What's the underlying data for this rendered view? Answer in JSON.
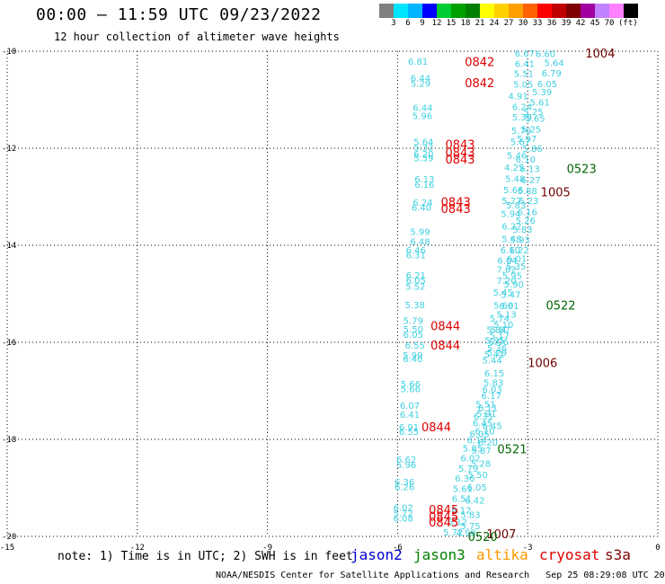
{
  "header": {
    "title": "00:00 — 11:59 UTC 09/23/2022",
    "subtitle": "12 hour collection of altimeter wave heights"
  },
  "legend": {
    "swatches": [
      "#808080",
      "#00e5ff",
      "#00b4ff",
      "#0000ff",
      "#00cc33",
      "#00a000",
      "#008000",
      "#ffff00",
      "#ffd000",
      "#ffa000",
      "#ff6000",
      "#ff0000",
      "#c00000",
      "#800000",
      "#a000a0",
      "#c080ff",
      "#ff80ff",
      "#000000"
    ],
    "labels": [
      "3",
      "6",
      "9",
      "12",
      "15",
      "18",
      "21",
      "24",
      "27",
      "30",
      "33",
      "36",
      "39",
      "42",
      "45",
      "70",
      "(ft)"
    ]
  },
  "chart_data": {
    "type": "scatter",
    "xlim": [
      -15,
      0
    ],
    "ylim": [
      -20,
      -10
    ],
    "x_ticks": [
      -15,
      -12,
      -9,
      -6,
      -3,
      0
    ],
    "y_ticks": [
      -10,
      -12,
      -14,
      -16,
      -18,
      -20
    ],
    "grid": true,
    "swh_color": "#40d0e0",
    "points": [
      {
        "x": -3.3,
        "y": -10.04,
        "v": "6.67"
      },
      {
        "x": -2.82,
        "y": -10.05,
        "v": "6.60"
      },
      {
        "x": -3.3,
        "y": -10.25,
        "v": "6.41"
      },
      {
        "x": -2.62,
        "y": -10.23,
        "v": "5.64"
      },
      {
        "x": -3.32,
        "y": -10.45,
        "v": "5.51"
      },
      {
        "x": -2.68,
        "y": -10.44,
        "v": "6.79"
      },
      {
        "x": -3.33,
        "y": -10.68,
        "v": "5.05"
      },
      {
        "x": -2.78,
        "y": -10.67,
        "v": "6.05"
      },
      {
        "x": -3.45,
        "y": -10.92,
        "v": "4.91"
      },
      {
        "x": -2.9,
        "y": -10.83,
        "v": "5.39"
      },
      {
        "x": -3.36,
        "y": -11.14,
        "v": "6.24"
      },
      {
        "x": -2.95,
        "y": -11.05,
        "v": "5.61"
      },
      {
        "x": -3.1,
        "y": -11.24,
        "v": "5.25"
      },
      {
        "x": -3.36,
        "y": -11.35,
        "v": "5.39"
      },
      {
        "x": -3.06,
        "y": -11.38,
        "v": "5.65"
      },
      {
        "x": -3.38,
        "y": -11.63,
        "v": "5.70"
      },
      {
        "x": -3.15,
        "y": -11.6,
        "v": "5.25"
      },
      {
        "x": -3.25,
        "y": -11.8,
        "v": "5.97"
      },
      {
        "x": -3.4,
        "y": -11.86,
        "v": "5.67"
      },
      {
        "x": -3.12,
        "y": -12.0,
        "v": "5.86"
      },
      {
        "x": -3.48,
        "y": -12.14,
        "v": "5.46"
      },
      {
        "x": -3.28,
        "y": -12.22,
        "v": "6.10"
      },
      {
        "x": -3.54,
        "y": -12.39,
        "v": "4.25"
      },
      {
        "x": -3.18,
        "y": -12.42,
        "v": "6.13"
      },
      {
        "x": -3.52,
        "y": -12.62,
        "v": "5.48"
      },
      {
        "x": -3.16,
        "y": -12.65,
        "v": "6.27"
      },
      {
        "x": -3.56,
        "y": -12.85,
        "v": "5.66"
      },
      {
        "x": -3.24,
        "y": -12.87,
        "v": "5.88"
      },
      {
        "x": -3.6,
        "y": -13.07,
        "v": "5.27"
      },
      {
        "x": -3.21,
        "y": -13.07,
        "v": "6.23"
      },
      {
        "x": -3.5,
        "y": -13.17,
        "v": "5.83"
      },
      {
        "x": -3.24,
        "y": -13.31,
        "v": "6.16"
      },
      {
        "x": -3.62,
        "y": -13.34,
        "v": "5.94"
      },
      {
        "x": -3.28,
        "y": -13.48,
        "v": "5.26"
      },
      {
        "x": -3.6,
        "y": -13.6,
        "v": "6.22"
      },
      {
        "x": -3.35,
        "y": -13.67,
        "v": "5.83"
      },
      {
        "x": -3.6,
        "y": -13.86,
        "v": "5.48"
      },
      {
        "x": -3.41,
        "y": -13.88,
        "v": "5.93"
      },
      {
        "x": -3.63,
        "y": -14.09,
        "v": "6.10"
      },
      {
        "x": -3.43,
        "y": -14.09,
        "v": "6.22"
      },
      {
        "x": -3.7,
        "y": -14.31,
        "v": "6.04"
      },
      {
        "x": -3.48,
        "y": -14.27,
        "v": "6.01"
      },
      {
        "x": -3.72,
        "y": -14.49,
        "v": "7.02"
      },
      {
        "x": -3.5,
        "y": -14.43,
        "v": "5.35"
      },
      {
        "x": -3.59,
        "y": -14.62,
        "v": "5.95"
      },
      {
        "x": -3.72,
        "y": -14.72,
        "v": "7.20"
      },
      {
        "x": -3.55,
        "y": -14.8,
        "v": "5.90"
      },
      {
        "x": -3.8,
        "y": -14.96,
        "v": "5.45"
      },
      {
        "x": -3.62,
        "y": -15.01,
        "v": "5.47"
      },
      {
        "x": -3.79,
        "y": -15.23,
        "v": "5.60"
      },
      {
        "x": -3.66,
        "y": -15.24,
        "v": "6.61"
      },
      {
        "x": -3.72,
        "y": -15.42,
        "v": "5.13"
      },
      {
        "x": -3.88,
        "y": -15.5,
        "v": "5.74"
      },
      {
        "x": -3.79,
        "y": -15.63,
        "v": "5.10"
      },
      {
        "x": -3.95,
        "y": -15.73,
        "v": "5.84"
      },
      {
        "x": -3.86,
        "y": -15.73,
        "v": "5.87"
      },
      {
        "x": -3.88,
        "y": -15.85,
        "v": "5.17"
      },
      {
        "x": -3.99,
        "y": -15.95,
        "v": "5.95"
      },
      {
        "x": -3.9,
        "y": -15.98,
        "v": "6.06"
      },
      {
        "x": -3.94,
        "y": -16.11,
        "v": "5.36"
      },
      {
        "x": -4.0,
        "y": -16.24,
        "v": "5.41"
      },
      {
        "x": -3.94,
        "y": -16.2,
        "v": "5.29"
      },
      {
        "x": -4.05,
        "y": -16.36,
        "v": "5.44"
      },
      {
        "x": -4.0,
        "y": -16.63,
        "v": "6.15"
      },
      {
        "x": -4.02,
        "y": -16.82,
        "v": "5.83"
      },
      {
        "x": -4.05,
        "y": -16.96,
        "v": "6.03"
      },
      {
        "x": -4.07,
        "y": -17.09,
        "v": "6.17"
      },
      {
        "x": -4.2,
        "y": -17.27,
        "v": "5.51"
      },
      {
        "x": -4.15,
        "y": -17.34,
        "v": "6.11"
      },
      {
        "x": -4.18,
        "y": -17.46,
        "v": "5.91"
      },
      {
        "x": -4.25,
        "y": -17.52,
        "v": "6.31"
      },
      {
        "x": -4.27,
        "y": -17.66,
        "v": "6.45"
      },
      {
        "x": -4.05,
        "y": -17.71,
        "v": "6.45"
      },
      {
        "x": -4.22,
        "y": -17.82,
        "v": "6.10"
      },
      {
        "x": -4.34,
        "y": -17.88,
        "v": "6.05"
      },
      {
        "x": -4.4,
        "y": -18.01,
        "v": "6.14"
      },
      {
        "x": -4.15,
        "y": -18.06,
        "v": "6.20"
      },
      {
        "x": -4.5,
        "y": -18.18,
        "v": "5.85"
      },
      {
        "x": -4.3,
        "y": -18.22,
        "v": "5.87"
      },
      {
        "x": -4.55,
        "y": -18.38,
        "v": "6.02"
      },
      {
        "x": -4.31,
        "y": -18.49,
        "v": "5.28"
      },
      {
        "x": -4.6,
        "y": -18.59,
        "v": "5.79"
      },
      {
        "x": -4.38,
        "y": -18.72,
        "v": "5.50"
      },
      {
        "x": -4.68,
        "y": -18.8,
        "v": "6.36"
      },
      {
        "x": -4.4,
        "y": -18.98,
        "v": "6.05"
      },
      {
        "x": -4.73,
        "y": -19.01,
        "v": "5.61"
      },
      {
        "x": -4.75,
        "y": -19.21,
        "v": "6.51"
      },
      {
        "x": -4.45,
        "y": -19.25,
        "v": "6.42"
      },
      {
        "x": -4.76,
        "y": -19.45,
        "v": "6.12"
      },
      {
        "x": -4.55,
        "y": -19.55,
        "v": "5.83"
      },
      {
        "x": -4.85,
        "y": -19.69,
        "v": "6.12"
      },
      {
        "x": -4.55,
        "y": -19.78,
        "v": "5.75"
      },
      {
        "x": -4.95,
        "y": -19.91,
        "v": "5.72"
      },
      {
        "x": -4.65,
        "y": -19.92,
        "v": "4.98"
      },
      {
        "x": -5.76,
        "y": -10.2,
        "v": "6.81"
      },
      {
        "x": -5.7,
        "y": -10.55,
        "v": "6.44"
      },
      {
        "x": -5.7,
        "y": -10.66,
        "v": "5.29"
      },
      {
        "x": -5.65,
        "y": -11.16,
        "v": "6.44"
      },
      {
        "x": -5.66,
        "y": -11.32,
        "v": "5.96"
      },
      {
        "x": -5.63,
        "y": -11.86,
        "v": "5.64"
      },
      {
        "x": -5.63,
        "y": -11.97,
        "v": "5.32"
      },
      {
        "x": -5.63,
        "y": -12.11,
        "v": "6.20"
      },
      {
        "x": -5.63,
        "y": -12.19,
        "v": "5.59"
      },
      {
        "x": -5.61,
        "y": -12.63,
        "v": "6.13"
      },
      {
        "x": -5.61,
        "y": -12.74,
        "v": "6.16"
      },
      {
        "x": -5.65,
        "y": -13.11,
        "v": "6.24"
      },
      {
        "x": -5.68,
        "y": -13.21,
        "v": "6.40"
      },
      {
        "x": -5.71,
        "y": -13.71,
        "v": "5.99"
      },
      {
        "x": -5.71,
        "y": -13.92,
        "v": "6.48"
      },
      {
        "x": -5.81,
        "y": -14.09,
        "v": "6.46"
      },
      {
        "x": -5.81,
        "y": -14.19,
        "v": "6.31"
      },
      {
        "x": -5.81,
        "y": -14.61,
        "v": "6.21"
      },
      {
        "x": -5.81,
        "y": -14.71,
        "v": "6.05"
      },
      {
        "x": -5.82,
        "y": -14.84,
        "v": "5.52"
      },
      {
        "x": -5.83,
        "y": -15.22,
        "v": "5.38"
      },
      {
        "x": -5.87,
        "y": -15.55,
        "v": "5.79"
      },
      {
        "x": -5.87,
        "y": -15.72,
        "v": "5.50"
      },
      {
        "x": -5.87,
        "y": -15.83,
        "v": "6.05"
      },
      {
        "x": -5.83,
        "y": -16.06,
        "v": "6.55"
      },
      {
        "x": -5.88,
        "y": -16.26,
        "v": "5.99"
      },
      {
        "x": -5.88,
        "y": -16.33,
        "v": "6.40"
      },
      {
        "x": -5.93,
        "y": -16.85,
        "v": "5.66"
      },
      {
        "x": -5.93,
        "y": -16.95,
        "v": "5.66"
      },
      {
        "x": -5.95,
        "y": -17.3,
        "v": "6.07"
      },
      {
        "x": -5.95,
        "y": -17.48,
        "v": "6.41"
      },
      {
        "x": -5.97,
        "y": -17.74,
        "v": "6.91"
      },
      {
        "x": -5.97,
        "y": -17.83,
        "v": "6.55"
      },
      {
        "x": -6.03,
        "y": -18.41,
        "v": "6.62"
      },
      {
        "x": -6.03,
        "y": -18.52,
        "v": "5.96"
      },
      {
        "x": -6.07,
        "y": -18.87,
        "v": "6.36"
      },
      {
        "x": -6.07,
        "y": -18.97,
        "v": "6.26"
      },
      {
        "x": -6.1,
        "y": -19.4,
        "v": "6.02"
      },
      {
        "x": -6.1,
        "y": -19.52,
        "v": "5.72"
      },
      {
        "x": -6.1,
        "y": -19.62,
        "v": "6.08"
      }
    ],
    "tags": [
      {
        "x": -1.67,
        "y": -10.04,
        "label": "1004",
        "color": "#700000"
      },
      {
        "x": -4.45,
        "y": -10.21,
        "label": "0842",
        "color": "#e00000"
      },
      {
        "x": -4.45,
        "y": -10.65,
        "label": "0842",
        "color": "#e00000"
      },
      {
        "x": -4.9,
        "y": -11.92,
        "label": "0843",
        "color": "#e00000"
      },
      {
        "x": -4.9,
        "y": -12.08,
        "label": "0843",
        "color": "#e00000"
      },
      {
        "x": -4.9,
        "y": -12.22,
        "label": "0843",
        "color": "#e00000"
      },
      {
        "x": -2.1,
        "y": -12.42,
        "label": "0523",
        "color": "#006600"
      },
      {
        "x": -2.7,
        "y": -12.9,
        "label": "1005",
        "color": "#700000"
      },
      {
        "x": -5.0,
        "y": -13.1,
        "label": "0843",
        "color": "#e00000"
      },
      {
        "x": -5.0,
        "y": -13.24,
        "label": "0843",
        "color": "#e00000"
      },
      {
        "x": -2.58,
        "y": -15.23,
        "label": "0522",
        "color": "#006600"
      },
      {
        "x": -5.24,
        "y": -15.66,
        "label": "0844",
        "color": "#e00000"
      },
      {
        "x": -5.24,
        "y": -16.06,
        "label": "0844",
        "color": "#e00000"
      },
      {
        "x": -3.0,
        "y": -16.42,
        "label": "1006",
        "color": "#700000"
      },
      {
        "x": -5.45,
        "y": -17.74,
        "label": "0844",
        "color": "#e00000"
      },
      {
        "x": -3.7,
        "y": -18.19,
        "label": "0521",
        "color": "#006600"
      },
      {
        "x": -5.28,
        "y": -19.44,
        "label": "0845",
        "color": "#e00000"
      },
      {
        "x": -5.28,
        "y": -19.58,
        "label": "0845",
        "color": "#e00000"
      },
      {
        "x": -5.28,
        "y": -19.7,
        "label": "0845",
        "color": "#e00000"
      },
      {
        "x": -3.95,
        "y": -19.94,
        "label": "1007",
        "color": "#700000"
      },
      {
        "x": -4.38,
        "y": -20.0,
        "label": "0520",
        "color": "#006600"
      }
    ]
  },
  "footer": {
    "note": "note: 1) Time is in UTC; 2) SWH is in feet",
    "satellites": [
      {
        "name": "jason2",
        "color": "#0000cc"
      },
      {
        "name": "jason3",
        "color": "#008000"
      },
      {
        "name": "altika",
        "color": "#ff9900"
      },
      {
        "name": "cryosat",
        "color": "#dd0000"
      },
      {
        "name": "s3a",
        "color": "#800000"
      }
    ],
    "credit": "NOAA/NESDIS Center for Satellite Applications and Research   Sep 25 08:29:08 UTC 2022"
  }
}
